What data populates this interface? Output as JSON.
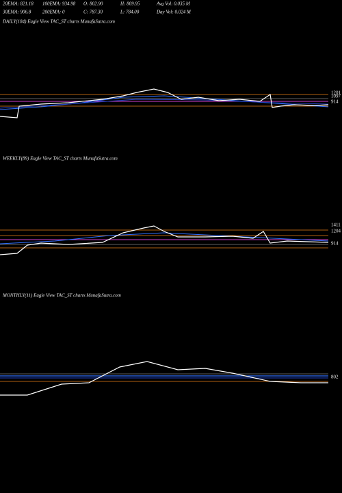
{
  "header": {
    "row1": [
      "20EMA: 821.18",
      "100EMA: 934.98",
      "O: 802.90",
      "H: 809.95",
      "Avg Vol: 0.035 M"
    ],
    "row2": [
      "30EMA: 906.8",
      "200EMA: 0",
      "C: 787.30",
      "L: 784.00",
      "Day Vol: 0.024 M"
    ]
  },
  "panels": [
    {
      "label": "DAILY(184) Eagle  View  TAC_ST charts MunafaSutra.com",
      "price_labels": [
        "1201",
        "1097",
        "914"
      ]
    },
    {
      "label": "WEEKLY(89) Eagle  View  TAC_ST charts MunafaSutra.com",
      "price_labels": [
        "1411",
        "1204",
        "914"
      ]
    },
    {
      "label": "MONTHLY(11) Eagle  View  TAC_ST charts MunafaSutra.com",
      "price_labels": [
        "802"
      ]
    }
  ]
}
